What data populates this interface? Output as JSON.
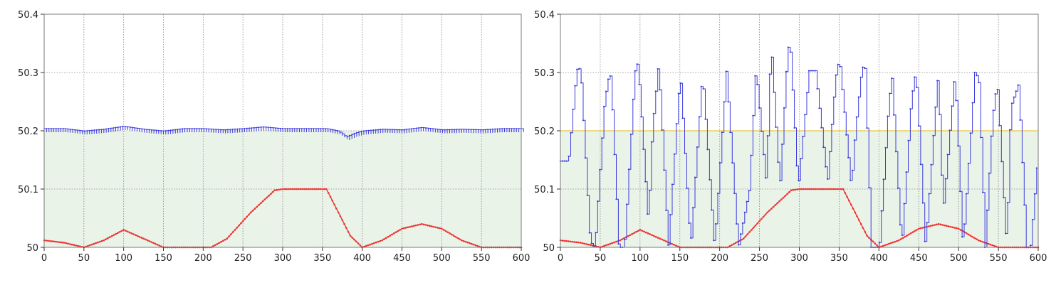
{
  "colors": {
    "fill": "#e9f3e8",
    "frame": "#7a7a7a",
    "grid": "#8a8a8a",
    "blue": "#3b3bdd",
    "red": "#ee3333",
    "threshold": "#e6c840"
  },
  "chart_data": [
    {
      "type": "line",
      "title": "",
      "xlabel": "",
      "ylabel": "",
      "xlim": [
        0,
        600
      ],
      "ylim": [
        50,
        50.4
      ],
      "x_ticks": [
        "0",
        "50",
        "100",
        "150",
        "200",
        "250",
        "300",
        "350",
        "400",
        "450",
        "500",
        "550",
        "600"
      ],
      "y_ticks": [
        "50",
        "50.1",
        "50.2",
        "50.3",
        "50.4"
      ],
      "grid": true,
      "shaded_band": [
        50,
        50.2
      ],
      "series": [
        {
          "role": "bottom",
          "color": "red",
          "style": "dots",
          "points": [
            [
              0,
              50.012
            ],
            [
              25,
              50.008
            ],
            [
              50,
              50.0
            ],
            [
              75,
              50.012
            ],
            [
              100,
              50.03
            ],
            [
              125,
              50.015
            ],
            [
              150,
              50.0
            ],
            [
              175,
              50.0
            ],
            [
              210,
              50.0
            ],
            [
              230,
              50.015
            ],
            [
              260,
              50.06
            ],
            [
              290,
              50.098
            ],
            [
              300,
              50.1
            ],
            [
              330,
              50.1
            ],
            [
              355,
              50.1
            ],
            [
              370,
              50.06
            ],
            [
              385,
              50.02
            ],
            [
              400,
              50.0
            ],
            [
              425,
              50.012
            ],
            [
              450,
              50.032
            ],
            [
              475,
              50.04
            ],
            [
              500,
              50.032
            ],
            [
              525,
              50.012
            ],
            [
              550,
              50.0
            ],
            [
              600,
              50.0
            ]
          ]
        },
        {
          "role": "top",
          "color": "blue",
          "style": "sawtooth",
          "points": [
            [
              0,
              50.2
            ],
            [
              25,
              50.2
            ],
            [
              50,
              50.196
            ],
            [
              75,
              50.199
            ],
            [
              100,
              50.204
            ],
            [
              125,
              50.199
            ],
            [
              150,
              50.196
            ],
            [
              175,
              50.2
            ],
            [
              200,
              50.2
            ],
            [
              225,
              50.198
            ],
            [
              250,
              50.2
            ],
            [
              275,
              50.203
            ],
            [
              300,
              50.2
            ],
            [
              330,
              50.2
            ],
            [
              355,
              50.2
            ],
            [
              370,
              50.196
            ],
            [
              380,
              50.186
            ],
            [
              390,
              50.192
            ],
            [
              400,
              50.196
            ],
            [
              425,
              50.199
            ],
            [
              450,
              50.198
            ],
            [
              475,
              50.202
            ],
            [
              500,
              50.198
            ],
            [
              525,
              50.199
            ],
            [
              550,
              50.198
            ],
            [
              575,
              50.2
            ],
            [
              600,
              50.2
            ]
          ]
        }
      ]
    },
    {
      "type": "line",
      "title": "",
      "xlabel": "",
      "ylabel": "",
      "xlim": [
        0,
        600
      ],
      "ylim": [
        50,
        50.4
      ],
      "x_ticks": [
        "0",
        "50",
        "100",
        "150",
        "200",
        "250",
        "300",
        "350",
        "400",
        "450",
        "500",
        "550",
        "600"
      ],
      "y_ticks": [
        "50",
        "50.1",
        "50.2",
        "50.3",
        "50.4"
      ],
      "grid": true,
      "shaded_band": [
        50,
        50.2
      ],
      "threshold_line": 50.2,
      "series": [
        {
          "role": "bottom",
          "color": "red",
          "style": "dots",
          "points": [
            [
              0,
              50.012
            ],
            [
              25,
              50.008
            ],
            [
              50,
              50.0
            ],
            [
              75,
              50.012
            ],
            [
              100,
              50.03
            ],
            [
              125,
              50.015
            ],
            [
              150,
              50.0
            ],
            [
              175,
              50.0
            ],
            [
              210,
              50.0
            ],
            [
              230,
              50.015
            ],
            [
              260,
              50.06
            ],
            [
              290,
              50.098
            ],
            [
              300,
              50.1
            ],
            [
              330,
              50.1
            ],
            [
              355,
              50.1
            ],
            [
              370,
              50.06
            ],
            [
              385,
              50.02
            ],
            [
              400,
              50.0
            ],
            [
              425,
              50.012
            ],
            [
              450,
              50.032
            ],
            [
              475,
              50.04
            ],
            [
              500,
              50.032
            ],
            [
              525,
              50.012
            ],
            [
              550,
              50.0
            ],
            [
              600,
              50.0
            ]
          ]
        },
        {
          "role": "top",
          "color": "blue",
          "style": "steps",
          "points": [
            [
              0,
              50.148
            ],
            [
              8,
              50.148
            ],
            [
              10,
              50.15
            ],
            [
              20,
              50.305
            ],
            [
              25,
              50.307
            ],
            [
              37,
              50.01
            ],
            [
              43,
              50.0
            ],
            [
              55,
              50.25
            ],
            [
              60,
              50.29
            ],
            [
              63,
              50.295
            ],
            [
              73,
              50.0
            ],
            [
              80,
              50.0
            ],
            [
              93,
              50.3
            ],
            [
              97,
              50.318
            ],
            [
              110,
              50.04
            ],
            [
              115,
              50.2
            ],
            [
              123,
              50.318
            ],
            [
              135,
              50.0
            ],
            [
              150,
              50.3
            ],
            [
              163,
              50.0
            ],
            [
              178,
              50.3
            ],
            [
              193,
              50.0
            ],
            [
              208,
              50.302
            ],
            [
              223,
              50.0
            ],
            [
              237,
              50.1
            ],
            [
              245,
              50.31
            ],
            [
              258,
              50.11
            ],
            [
              264,
              50.354
            ],
            [
              275,
              50.1
            ],
            [
              285,
              50.34
            ],
            [
              288,
              50.35
            ],
            [
              298,
              50.1
            ],
            [
              312,
              50.303
            ],
            [
              320,
              50.303
            ],
            [
              335,
              50.11
            ],
            [
              345,
              50.29
            ],
            [
              350,
              50.325
            ],
            [
              365,
              50.1
            ],
            [
              370,
              50.2
            ],
            [
              378,
              50.305
            ],
            [
              382,
              50.315
            ],
            [
              390,
              50.0
            ],
            [
              400,
              50.0
            ],
            [
              412,
              50.25
            ],
            [
              416,
              50.29
            ],
            [
              428,
              50.0
            ],
            [
              440,
              50.25
            ],
            [
              446,
              50.305
            ],
            [
              458,
              50.0
            ],
            [
              470,
              50.23
            ],
            [
              474,
              50.3
            ],
            [
              480,
              50.06
            ],
            [
              495,
              50.3
            ],
            [
              505,
              50.0
            ],
            [
              520,
              50.3
            ],
            [
              525,
              50.29
            ],
            [
              533,
              50.0
            ],
            [
              542,
              50.22
            ],
            [
              548,
              50.285
            ],
            [
              560,
              50.0
            ],
            [
              565,
              50.24
            ],
            [
              575,
              50.28
            ],
            [
              585,
              50.0
            ],
            [
              590,
              50.0
            ],
            [
              600,
              50.17
            ]
          ]
        }
      ]
    }
  ]
}
